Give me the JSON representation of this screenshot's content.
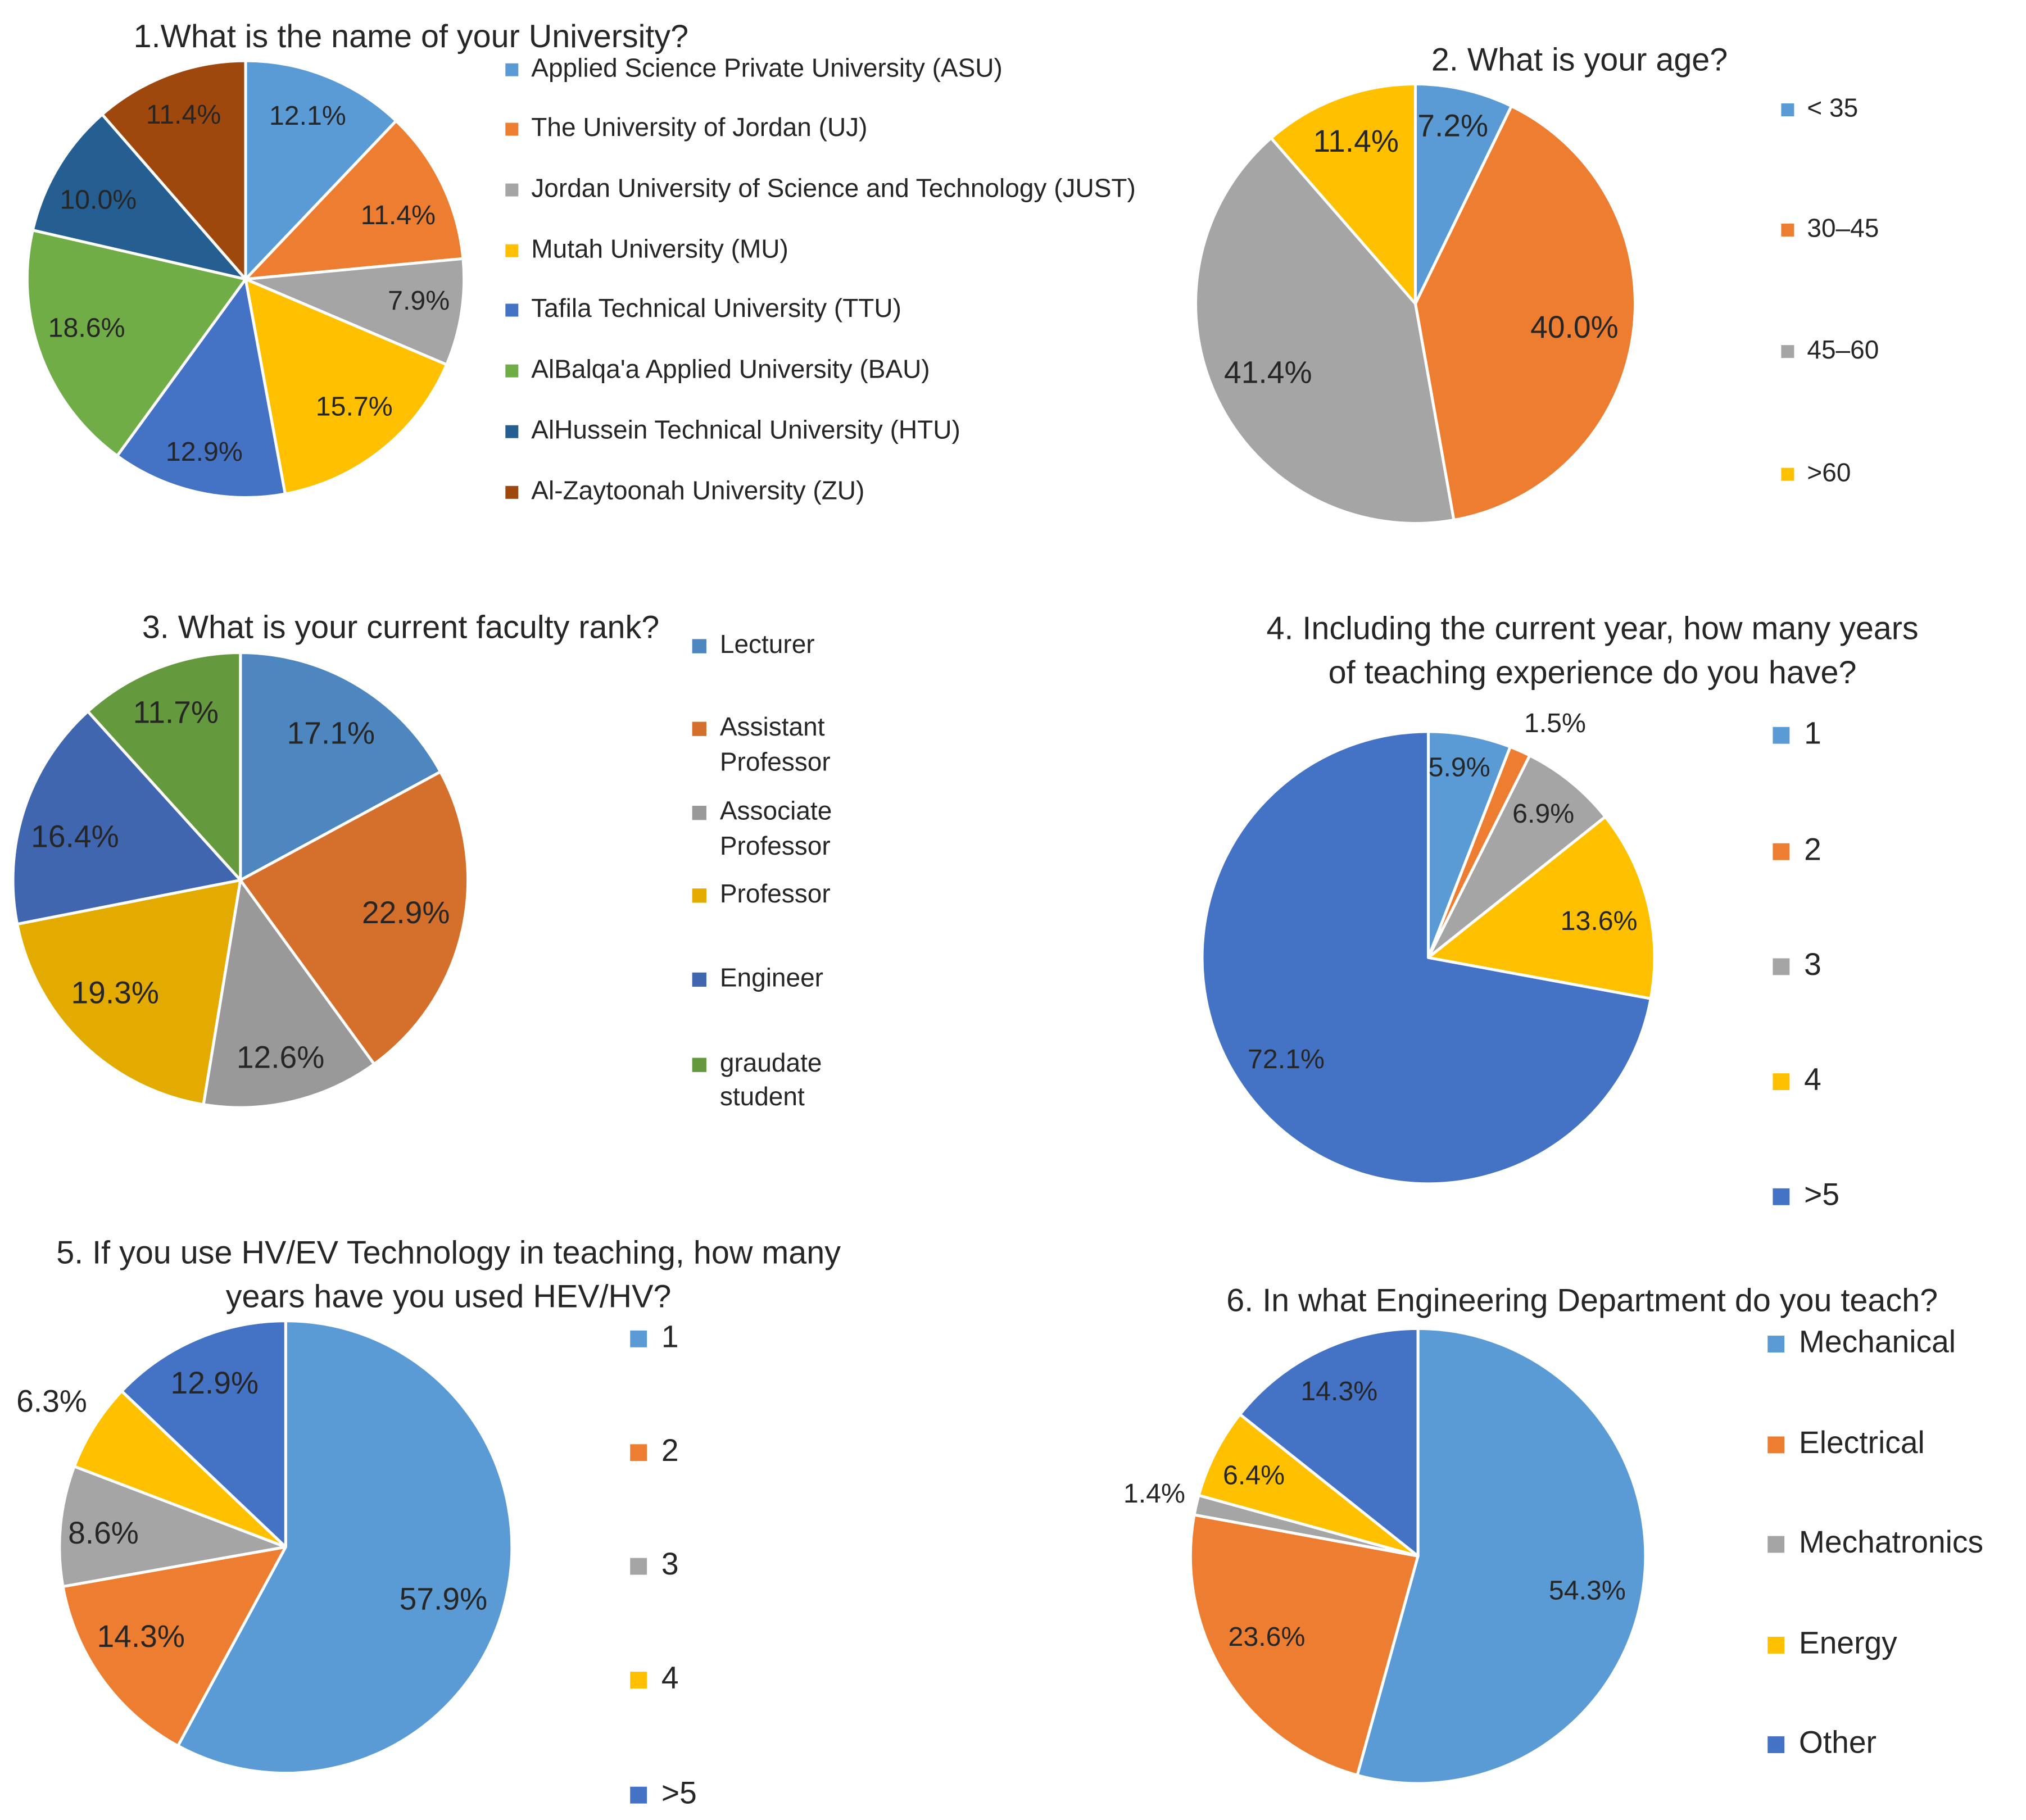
{
  "chart_data": [
    {
      "type": "pie",
      "title": "1.What is the name of your University?",
      "title_lines": [
        "1.What is the name of your University?"
      ],
      "legend_position": "right",
      "series": [
        {
          "name": "Applied Science Private University (ASU)",
          "label": "12.1%",
          "value": 12.1,
          "color": "#5B9BD5"
        },
        {
          "name": "The University of Jordan (UJ)",
          "label": "11.4%",
          "value": 11.4,
          "color": "#ED7D31"
        },
        {
          "name": "Jordan University of Science and Technology (JUST)",
          "label": "7.9%",
          "value": 7.9,
          "color": "#A5A5A5"
        },
        {
          "name": "Mutah University (MU)",
          "label": "15.7%",
          "value": 15.7,
          "color": "#FFC000"
        },
        {
          "name": "Tafila Technical University (TTU)",
          "label": "12.9%",
          "value": 12.9,
          "color": "#4472C4"
        },
        {
          "name": "AlBalqa'a Applied University (BAU)",
          "label": "18.6%",
          "value": 18.6,
          "color": "#70AD47"
        },
        {
          "name": "AlHussein Technical University (HTU)",
          "label": "10.0%",
          "value": 10.0,
          "color": "#255E91"
        },
        {
          "name": "Al-Zaytoonah University (ZU)",
          "label": "11.4%",
          "value": 11.4,
          "color": "#9E480E"
        }
      ]
    },
    {
      "type": "pie",
      "title": "2. What is your age?",
      "title_lines": [
        "2. What is your age?"
      ],
      "legend_position": "right",
      "series": [
        {
          "name": "< 35",
          "label": "7.2%",
          "value": 7.2,
          "color": "#5B9BD5"
        },
        {
          "name": "30–45",
          "label": "40.0%",
          "value": 40.0,
          "color": "#ED7D31"
        },
        {
          "name": "45–60",
          "label": "41.4%",
          "value": 41.4,
          "color": "#A5A5A5"
        },
        {
          "name": ">60",
          "label": "11.4%",
          "value": 11.4,
          "color": "#FFC000"
        }
      ]
    },
    {
      "type": "pie",
      "title": "3. What is your current faculty rank?",
      "title_lines": [
        "3. What is your current faculty rank?"
      ],
      "legend_position": "right",
      "series": [
        {
          "name": "Lecturer",
          "label": "17.1%",
          "value": 17.1,
          "color": "#4E87BF"
        },
        {
          "name": "Assistant Professor",
          "label": "22.9%",
          "value": 22.9,
          "color": "#D5702C"
        },
        {
          "name": "Associate Professor",
          "label": "12.6%",
          "value": 12.6,
          "color": "#999999"
        },
        {
          "name": "Professor",
          "label": "19.3%",
          "value": 19.3,
          "color": "#E3AA00"
        },
        {
          "name": "Engineer",
          "label": "16.4%",
          "value": 16.4,
          "color": "#3F66AF"
        },
        {
          "name": "graudate student",
          "label": "11.7%",
          "value": 11.7,
          "color": "#65993D"
        }
      ]
    },
    {
      "type": "pie",
      "title": "4. Including the current year, how many years of teaching experience do you have?",
      "title_lines": [
        "4. Including the current year, how many years",
        "of teaching experience do you have?"
      ],
      "legend_position": "right",
      "series": [
        {
          "name": "1",
          "label": "5.9%",
          "value": 5.9,
          "color": "#5B9BD5"
        },
        {
          "name": "2",
          "label": "1.5%",
          "value": 1.5,
          "color": "#ED7D31"
        },
        {
          "name": "3",
          "label": "6.9%",
          "value": 6.9,
          "color": "#A5A5A5"
        },
        {
          "name": "4",
          "label": "13.6%",
          "value": 13.6,
          "color": "#FFC000"
        },
        {
          "name": ">5",
          "label": "72.1%",
          "value": 72.1,
          "color": "#4472C4"
        }
      ]
    },
    {
      "type": "pie",
      "title": "5. If you use HV/EV Technology in teaching, how many years have you used HEV/HV?",
      "title_lines": [
        "5. If you use HV/EV Technology in teaching, how many",
        "years have you used HEV/HV?"
      ],
      "legend_position": "right",
      "series": [
        {
          "name": "1",
          "label": "57.9%",
          "value": 57.9,
          "color": "#5B9BD5"
        },
        {
          "name": "2",
          "label": "14.3%",
          "value": 14.3,
          "color": "#ED7D31"
        },
        {
          "name": "3",
          "label": "8.6%",
          "value": 8.6,
          "color": "#A5A5A5"
        },
        {
          "name": "4",
          "label": "6.3%",
          "value": 6.3,
          "color": "#FFC000"
        },
        {
          "name": ">5",
          "label": "12.9%",
          "value": 12.9,
          "color": "#4472C4"
        }
      ]
    },
    {
      "type": "pie",
      "title": "6. In what Engineering Department do you teach?",
      "title_lines": [
        "6. In what Engineering Department do you teach?"
      ],
      "legend_position": "right",
      "series": [
        {
          "name": "Mechanical",
          "label": "54.3%",
          "value": 54.3,
          "color": "#5B9BD5"
        },
        {
          "name": "Electrical",
          "label": "23.6%",
          "value": 23.6,
          "color": "#ED7D31"
        },
        {
          "name": "Mechatronics",
          "label": "1.4%",
          "value": 1.4,
          "color": "#A5A5A5"
        },
        {
          "name": "Energy",
          "label": "6.4%",
          "value": 6.4,
          "color": "#FFC000"
        },
        {
          "name": "Other",
          "label": "14.3%",
          "value": 14.3,
          "color": "#4472C4"
        }
      ]
    }
  ]
}
